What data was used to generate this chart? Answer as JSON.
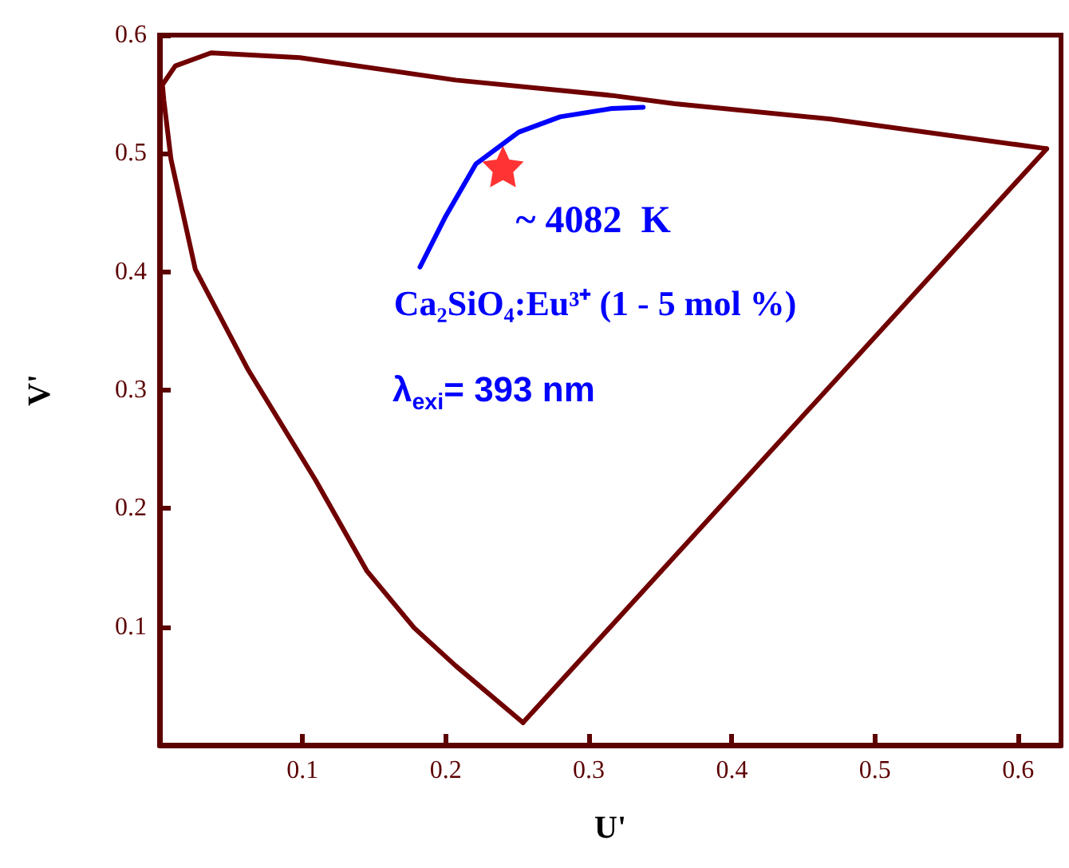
{
  "chart_data": {
    "type": "line",
    "xlabel": "U'",
    "ylabel": "V'",
    "xlim": [
      0,
      0.63
    ],
    "ylim": [
      0,
      0.6
    ],
    "xticks": [
      0.1,
      0.2,
      0.3,
      0.4,
      0.5,
      0.6
    ],
    "yticks": [
      0.1,
      0.2,
      0.3,
      0.4,
      0.5,
      0.6
    ],
    "grid": false,
    "series": [
      {
        "color": "#700000",
        "marker": "none",
        "x": [
          0.254,
          0.207,
          0.178,
          0.145,
          0.109,
          0.062,
          0.025,
          0.008,
          0.003,
          0.002,
          0.011,
          0.036,
          0.098,
          0.207,
          0.316,
          0.36,
          0.469,
          0.62
        ],
        "values": [
          0.019,
          0.067,
          0.099,
          0.147,
          0.224,
          0.317,
          0.402,
          0.495,
          0.545,
          0.558,
          0.574,
          0.585,
          0.581,
          0.562,
          0.549,
          0.542,
          0.529,
          0.504
        ]
      },
      {
        "color": "#700000",
        "marker": "none",
        "x": [
          0.254,
          0.62
        ],
        "values": [
          0.019,
          0.504
        ]
      },
      {
        "color": "#0000ff",
        "marker": "none",
        "x": [
          0.182,
          0.2,
          0.221,
          0.251,
          0.28,
          0.316,
          0.338
        ],
        "values": [
          0.404,
          0.447,
          0.491,
          0.518,
          0.531,
          0.538,
          0.539
        ]
      },
      {
        "type": "scatter",
        "color": "#ff0000",
        "marker": "star",
        "x": [
          0.24
        ],
        "values": [
          0.489
        ]
      }
    ],
    "annotations": [
      {
        "text": "~ 4082  K",
        "x": 0.24,
        "y": 0.489
      },
      "Ca₂SiO₄:Eu³⁺ (1 - 5 mol %)",
      "λ$_{exi}$= 393 nm"
    ]
  }
}
